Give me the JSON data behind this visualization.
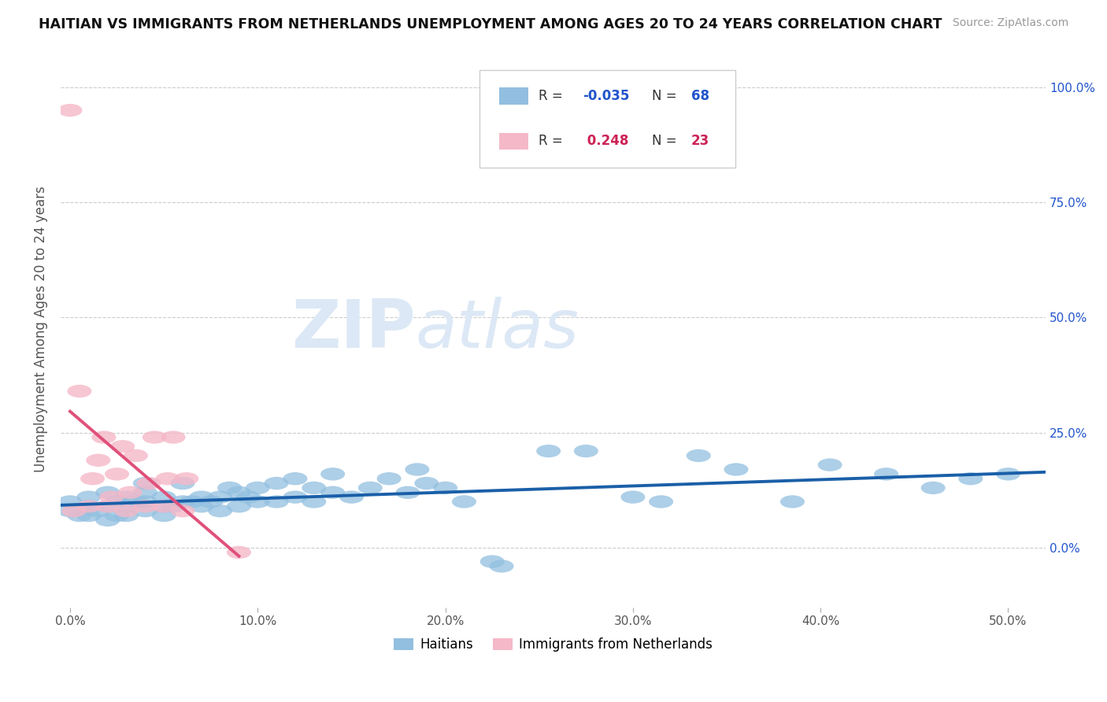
{
  "title": "HAITIAN VS IMMIGRANTS FROM NETHERLANDS UNEMPLOYMENT AMONG AGES 20 TO 24 YEARS CORRELATION CHART",
  "source": "Source: ZipAtlas.com",
  "ylabel": "Unemployment Among Ages 20 to 24 years",
  "xlim": [
    -0.005,
    0.52
  ],
  "ylim": [
    -0.13,
    1.08
  ],
  "yticks": [
    0.0,
    0.25,
    0.5,
    0.75,
    1.0
  ],
  "ytick_labels": [
    "0.0%",
    "25.0%",
    "50.0%",
    "75.0%",
    "100.0%"
  ],
  "xticks": [
    0.0,
    0.1,
    0.2,
    0.3,
    0.4,
    0.5
  ],
  "xtick_labels": [
    "0.0%",
    "10.0%",
    "20.0%",
    "30.0%",
    "40.0%",
    "50.0%"
  ],
  "blue_color": "#92bfe0",
  "pink_color": "#f5b8c8",
  "trend_blue_color": "#1a5fa8",
  "trend_pink_color": "#e0507a",
  "legend_blue": "#2255cc",
  "legend_pink": "#cc2255",
  "watermark_color": "#dce8f5",
  "haitians_x": [
    0.0,
    0.0,
    0.005,
    0.01,
    0.01,
    0.01,
    0.015,
    0.02,
    0.02,
    0.02,
    0.025,
    0.025,
    0.03,
    0.03,
    0.03,
    0.035,
    0.04,
    0.04,
    0.04,
    0.04,
    0.05,
    0.05,
    0.05,
    0.055,
    0.06,
    0.06,
    0.065,
    0.07,
    0.07,
    0.075,
    0.08,
    0.08,
    0.085,
    0.09,
    0.09,
    0.095,
    0.1,
    0.1,
    0.11,
    0.11,
    0.12,
    0.12,
    0.13,
    0.13,
    0.14,
    0.14,
    0.15,
    0.16,
    0.17,
    0.18,
    0.185,
    0.19,
    0.2,
    0.21,
    0.225,
    0.23,
    0.255,
    0.275,
    0.3,
    0.315,
    0.335,
    0.355,
    0.385,
    0.405,
    0.435,
    0.46,
    0.48,
    0.5
  ],
  "haitians_y": [
    0.08,
    0.1,
    0.07,
    0.07,
    0.09,
    0.11,
    0.08,
    0.06,
    0.09,
    0.12,
    0.07,
    0.1,
    0.07,
    0.09,
    0.11,
    0.1,
    0.08,
    0.1,
    0.12,
    0.14,
    0.07,
    0.09,
    0.11,
    0.09,
    0.1,
    0.14,
    0.1,
    0.09,
    0.11,
    0.1,
    0.08,
    0.11,
    0.13,
    0.09,
    0.12,
    0.11,
    0.1,
    0.13,
    0.1,
    0.14,
    0.11,
    0.15,
    0.1,
    0.13,
    0.12,
    0.16,
    0.11,
    0.13,
    0.15,
    0.12,
    0.17,
    0.14,
    0.13,
    0.1,
    -0.03,
    -0.04,
    0.21,
    0.21,
    0.11,
    0.1,
    0.2,
    0.17,
    0.1,
    0.18,
    0.16,
    0.13,
    0.15,
    0.16
  ],
  "netherlands_x": [
    0.0,
    0.002,
    0.005,
    0.01,
    0.012,
    0.015,
    0.018,
    0.02,
    0.022,
    0.025,
    0.028,
    0.03,
    0.032,
    0.035,
    0.04,
    0.042,
    0.045,
    0.05,
    0.052,
    0.055,
    0.06,
    0.062,
    0.09
  ],
  "netherlands_y": [
    0.95,
    0.08,
    0.34,
    0.09,
    0.15,
    0.19,
    0.24,
    0.09,
    0.11,
    0.16,
    0.22,
    0.08,
    0.12,
    0.2,
    0.09,
    0.14,
    0.24,
    0.09,
    0.15,
    0.24,
    0.08,
    0.15,
    -0.01
  ]
}
